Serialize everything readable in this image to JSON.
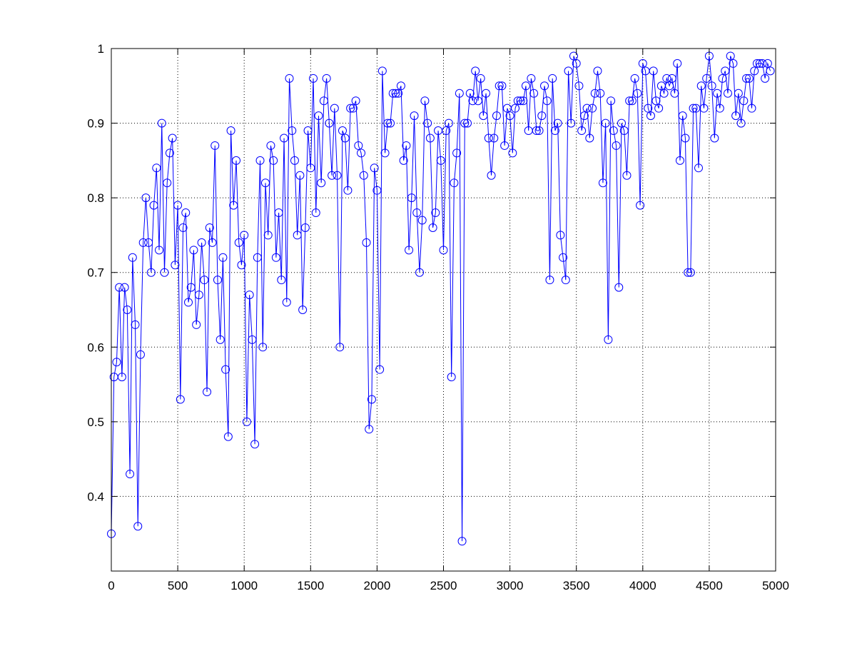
{
  "chart_data": {
    "type": "line",
    "title": "",
    "xlabel": "",
    "ylabel": "",
    "xlim": [
      0,
      5000
    ],
    "ylim": [
      0.3,
      1.0
    ],
    "grid": true,
    "grid_style": "dotted",
    "box": true,
    "marker": "circle",
    "x_ticks": [
      "0",
      "500",
      "1000",
      "1500",
      "2000",
      "2500",
      "3000",
      "3500",
      "4000",
      "4500",
      "5000"
    ],
    "y_ticks": [
      "0.4",
      "0.5",
      "0.6",
      "0.7",
      "0.8",
      "0.9",
      "1"
    ],
    "x_tick_values": [
      0,
      500,
      1000,
      1500,
      2000,
      2500,
      3000,
      3500,
      4000,
      4500,
      5000
    ],
    "y_tick_values": [
      0.4,
      0.5,
      0.6,
      0.7,
      0.8,
      0.9,
      1.0
    ],
    "series": [
      {
        "color": "#0000ff",
        "x_start": 0,
        "x_step": 20,
        "values": [
          0.35,
          0.56,
          0.58,
          0.68,
          0.56,
          0.68,
          0.65,
          0.43,
          0.72,
          0.63,
          0.36,
          0.59,
          0.74,
          0.8,
          0.74,
          0.7,
          0.79,
          0.84,
          0.73,
          0.9,
          0.7,
          0.82,
          0.86,
          0.88,
          0.71,
          0.79,
          0.53,
          0.76,
          0.78,
          0.66,
          0.68,
          0.73,
          0.63,
          0.67,
          0.74,
          0.69,
          0.54,
          0.76,
          0.74,
          0.87,
          0.69,
          0.61,
          0.72,
          0.57,
          0.48,
          0.89,
          0.79,
          0.85,
          0.74,
          0.71,
          0.75,
          0.5,
          0.67,
          0.61,
          0.47,
          0.72,
          0.85,
          0.6,
          0.82,
          0.75,
          0.87,
          0.85,
          0.72,
          0.78,
          0.69,
          0.88,
          0.66,
          0.96,
          0.89,
          0.85,
          0.75,
          0.83,
          0.65,
          0.76,
          0.89,
          0.84,
          0.96,
          0.78,
          0.91,
          0.82,
          0.93,
          0.96,
          0.9,
          0.83,
          0.92,
          0.83,
          0.6,
          0.89,
          0.88,
          0.81,
          0.92,
          0.92,
          0.93,
          0.87,
          0.86,
          0.83,
          0.74,
          0.49,
          0.53,
          0.84,
          0.81,
          0.57,
          0.97,
          0.86,
          0.9,
          0.9,
          0.94,
          0.94,
          0.94,
          0.95,
          0.85,
          0.87,
          0.73,
          0.8,
          0.91,
          0.78,
          0.7,
          0.77,
          0.93,
          0.9,
          0.88,
          0.76,
          0.78,
          0.89,
          0.85,
          0.73,
          0.89,
          0.9,
          0.56,
          0.82,
          0.86,
          0.94,
          0.34,
          0.9,
          0.9,
          0.94,
          0.93,
          0.97,
          0.93,
          0.96,
          0.91,
          0.94,
          0.88,
          0.83,
          0.88,
          0.91,
          0.95,
          0.95,
          0.87,
          0.92,
          0.91,
          0.86,
          0.92,
          0.93,
          0.93,
          0.93,
          0.95,
          0.89,
          0.96,
          0.94,
          0.89,
          0.89,
          0.91,
          0.95,
          0.93,
          0.69,
          0.96,
          0.89,
          0.9,
          0.75,
          0.72,
          0.69,
          0.97,
          0.9,
          0.99,
          0.98,
          0.95,
          0.89,
          0.91,
          0.92,
          0.88,
          0.92,
          0.94,
          0.97,
          0.94,
          0.82,
          0.9,
          0.61,
          0.93,
          0.89,
          0.87,
          0.68,
          0.9,
          0.89,
          0.83,
          0.93,
          0.93,
          0.96,
          0.94,
          0.79,
          0.98,
          0.97,
          0.92,
          0.91,
          0.97,
          0.93,
          0.92,
          0.95,
          0.94,
          0.96,
          0.95,
          0.96,
          0.94,
          0.98,
          0.85,
          0.91,
          0.88,
          0.7,
          0.7,
          0.92,
          0.92,
          0.84,
          0.95,
          0.92,
          0.96,
          0.99,
          0.95,
          0.88,
          0.94,
          0.92,
          0.96,
          0.97,
          0.94,
          0.99,
          0.98,
          0.91,
          0.94,
          0.9,
          0.93,
          0.96,
          0.96,
          0.92,
          0.97,
          0.98,
          0.98,
          0.98,
          0.96,
          0.98,
          0.97
        ]
      }
    ]
  }
}
